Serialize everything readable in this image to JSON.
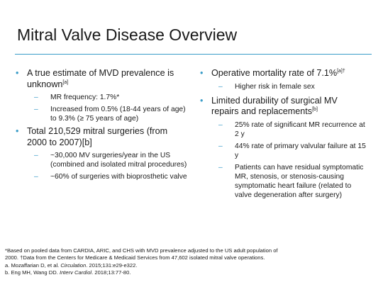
{
  "slide": {
    "title": "Mitral Valve Disease Overview"
  },
  "left": {
    "b1_text": "A true estimate of MVD prevalence is unknown",
    "b1_sup": "[a]",
    "b1_sub1": "MR frequency: 1.7%*",
    "b1_sub2": "Increased from 0.5% (18-44 years of age) to 9.3% (≥ 75 years of age)",
    "b2_text": "Total 210,529 mitral surgeries (from 2000 to 2007)[b]",
    "b2_sub1": "~30,000 MV surgeries/year in the US (combined and isolated mitral procedures)",
    "b2_sub2": "~60% of surgeries with bioprosthetic valve"
  },
  "right": {
    "b1_text": "Operative mortality rate of 7.1%",
    "b1_sup": "[a]†",
    "b1_sub1": "Higher risk in female sex",
    "b2_text": "Limited durability of surgical MV repairs and replacements",
    "b2_sup": "[b]",
    "b2_sub1": "25% rate of significant MR recurrence at 2 y",
    "b2_sub2": "44% rate of primary valvular failure at 15 y",
    "b2_sub3": "Patients can have residual symptomatic MR, stenosis, or stenosis-causing symptomatic heart failure (related to valve degeneration after surgery)"
  },
  "footnotes": {
    "line1": "*Based on pooled data from CARDIA, ARIC, and CHS with MVD prevalence adjusted to the US adult population of",
    "line2": "2000. †Data from the Centers for Medicare & Medicaid Services from 47,602 isolated mitral valve operations.",
    "ref_a_pre": "a. Mozaffarian D, et al. ",
    "ref_a_journal": "Circulation",
    "ref_a_post": ". 2015;131:e29-e322.",
    "ref_b_pre": "b. Eng MH, Wang DD. ",
    "ref_b_journal": "Interv Cardiol",
    "ref_b_post": ". 2018;13:77-80."
  },
  "colors": {
    "accent": "#3a9cc8",
    "text": "#1a1a1a"
  },
  "icons": {
    "bullet": "•",
    "dash": "–"
  }
}
